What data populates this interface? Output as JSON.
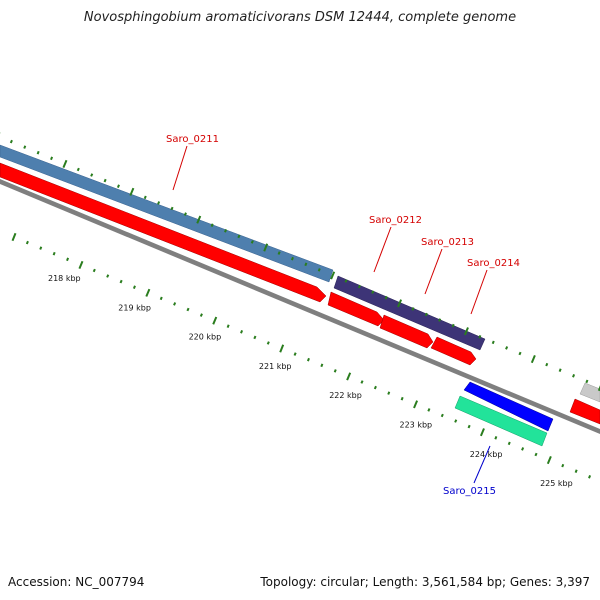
{
  "title": "Novosphingobium aromaticivorans DSM 12444, complete genome",
  "footer": {
    "accession": "Accession: NC_007794",
    "summary": "Topology: circular; Length: 3,561,584 bp; Genes: 3,397"
  },
  "colors": {
    "background": "#ffffff",
    "forward_cds": "#ff0000",
    "reverse_cds": "#0000ff",
    "steel_blue_feature": "#4e7fae",
    "purple_feature": "#3d3477",
    "green_feature": "#22e39a",
    "backbone": "#7f7f7f",
    "tick": "#2a7d1e",
    "label_red": "#d40000",
    "label_blue": "#0000cc"
  },
  "kbp_labels": [
    "218 kbp",
    "219 kbp",
    "220 kbp",
    "221 kbp",
    "222 kbp",
    "223 kbp",
    "224 kbp",
    "225 kbp"
  ],
  "genes": [
    {
      "name": "Saro_0211",
      "strand": "forward"
    },
    {
      "name": "Saro_0212",
      "strand": "forward"
    },
    {
      "name": "Saro_0213",
      "strand": "forward"
    },
    {
      "name": "Saro_0214",
      "strand": "forward"
    },
    {
      "name": "Saro_0215",
      "strand": "reverse"
    }
  ]
}
